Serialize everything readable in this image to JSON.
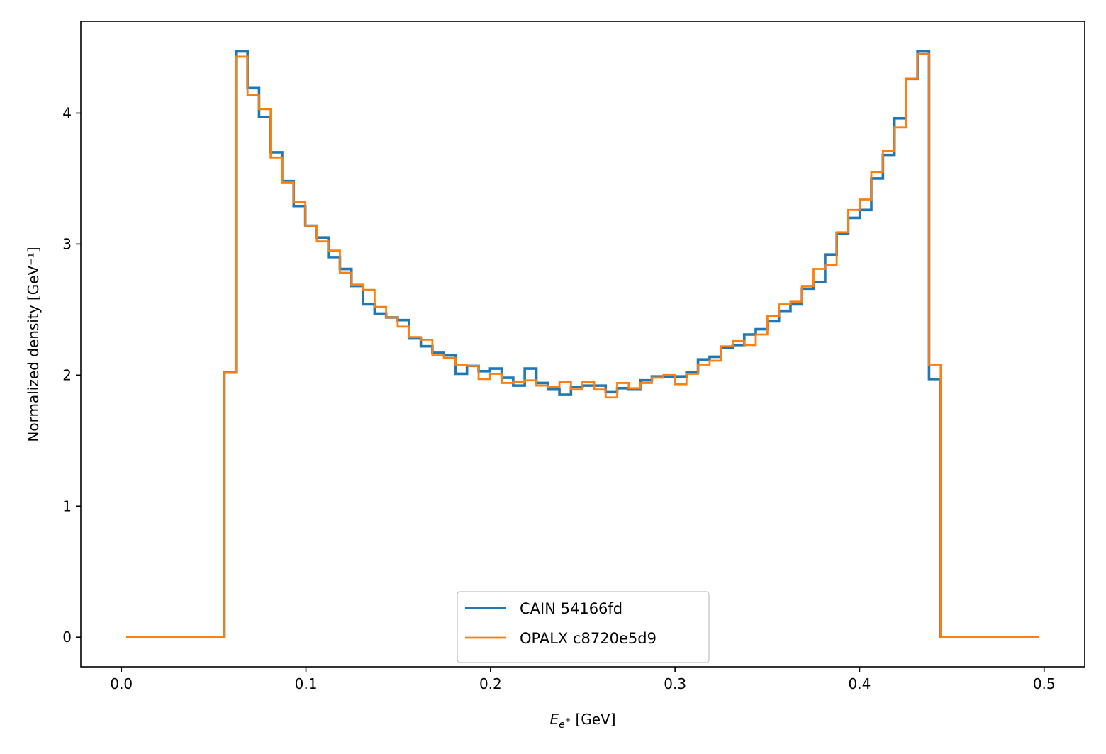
{
  "chart_data": {
    "type": "line",
    "style": "step-histogram",
    "xlabel": "E_{e+} [GeV]",
    "xlabel_parts": {
      "main": "E",
      "sub": "e",
      "sup": "+",
      "unit": " [GeV]"
    },
    "ylabel": "Normalized density [GeV⁻¹]",
    "xlim": [
      -0.022,
      0.522
    ],
    "ylim": [
      -0.226,
      4.7
    ],
    "xticks": [
      "0.0",
      "0.1",
      "0.2",
      "0.3",
      "0.4",
      "0.5"
    ],
    "xtick_values": [
      0.0,
      0.1,
      0.2,
      0.3,
      0.4,
      0.5
    ],
    "yticks": [
      "0",
      "1",
      "2",
      "3",
      "4"
    ],
    "ytick_values": [
      0,
      1,
      2,
      3,
      4
    ],
    "grid": false,
    "legend": "bottom-center",
    "x": [
      0.0026,
      0.0089,
      0.0151,
      0.0214,
      0.0276,
      0.0339,
      0.0402,
      0.0464,
      0.0527,
      0.0589,
      0.0652,
      0.0715,
      0.0777,
      0.084,
      0.0902,
      0.0965,
      0.1028,
      0.109,
      0.1153,
      0.1215,
      0.1278,
      0.1341,
      0.1403,
      0.1466,
      0.1528,
      0.1591,
      0.1654,
      0.1716,
      0.1779,
      0.1841,
      0.1904,
      0.1967,
      0.2029,
      0.2092,
      0.2154,
      0.2217,
      0.228,
      0.2342,
      0.2405,
      0.2467,
      0.253,
      0.2593,
      0.2655,
      0.2718,
      0.278,
      0.2843,
      0.2906,
      0.2968,
      0.3031,
      0.3093,
      0.3156,
      0.3219,
      0.3281,
      0.3344,
      0.3406,
      0.3469,
      0.3532,
      0.3594,
      0.3657,
      0.3719,
      0.3782,
      0.3845,
      0.3907,
      0.397,
      0.4032,
      0.4095,
      0.4158,
      0.422,
      0.4283,
      0.4345,
      0.4408,
      0.4471,
      0.4533,
      0.4596,
      0.4658,
      0.4721,
      0.4784,
      0.4846,
      0.4909,
      0.4971
    ],
    "series": [
      {
        "name": "CAIN 54166fd",
        "color": "#1f77b4",
        "values": [
          0,
          0,
          0,
          0,
          0,
          0,
          0,
          0,
          0,
          2.02,
          4.47,
          4.19,
          3.97,
          3.7,
          3.48,
          3.29,
          3.14,
          3.05,
          2.9,
          2.81,
          2.68,
          2.54,
          2.47,
          2.44,
          2.42,
          2.28,
          2.22,
          2.17,
          2.15,
          2.01,
          2.07,
          2.03,
          2.05,
          1.98,
          1.92,
          2.05,
          1.94,
          1.89,
          1.85,
          1.91,
          1.92,
          1.92,
          1.87,
          1.9,
          1.89,
          1.96,
          1.99,
          1.99,
          1.99,
          2.02,
          2.12,
          2.14,
          2.21,
          2.23,
          2.31,
          2.35,
          2.41,
          2.49,
          2.54,
          2.66,
          2.71,
          2.92,
          3.08,
          3.2,
          3.26,
          3.5,
          3.68,
          3.96,
          4.26,
          4.47,
          1.97,
          0,
          0,
          0,
          0,
          0,
          0,
          0,
          0,
          0
        ]
      },
      {
        "name": "OPALX c8720e5d9",
        "color": "#ff7f0e",
        "values": [
          0,
          0,
          0,
          0,
          0,
          0,
          0,
          0,
          0,
          2.02,
          4.43,
          4.14,
          4.03,
          3.66,
          3.47,
          3.32,
          3.14,
          3.02,
          2.95,
          2.78,
          2.69,
          2.65,
          2.52,
          2.44,
          2.37,
          2.29,
          2.27,
          2.15,
          2.13,
          2.08,
          2.07,
          1.97,
          2.01,
          1.94,
          1.95,
          1.96,
          1.92,
          1.91,
          1.95,
          1.89,
          1.95,
          1.89,
          1.83,
          1.94,
          1.9,
          1.94,
          1.98,
          2.0,
          1.93,
          2.01,
          2.08,
          2.11,
          2.22,
          2.26,
          2.23,
          2.31,
          2.45,
          2.54,
          2.56,
          2.68,
          2.81,
          2.84,
          3.09,
          3.26,
          3.34,
          3.55,
          3.71,
          3.89,
          4.26,
          4.45,
          2.08,
          0,
          0,
          0,
          0,
          0,
          0,
          0,
          0,
          0
        ]
      }
    ]
  }
}
